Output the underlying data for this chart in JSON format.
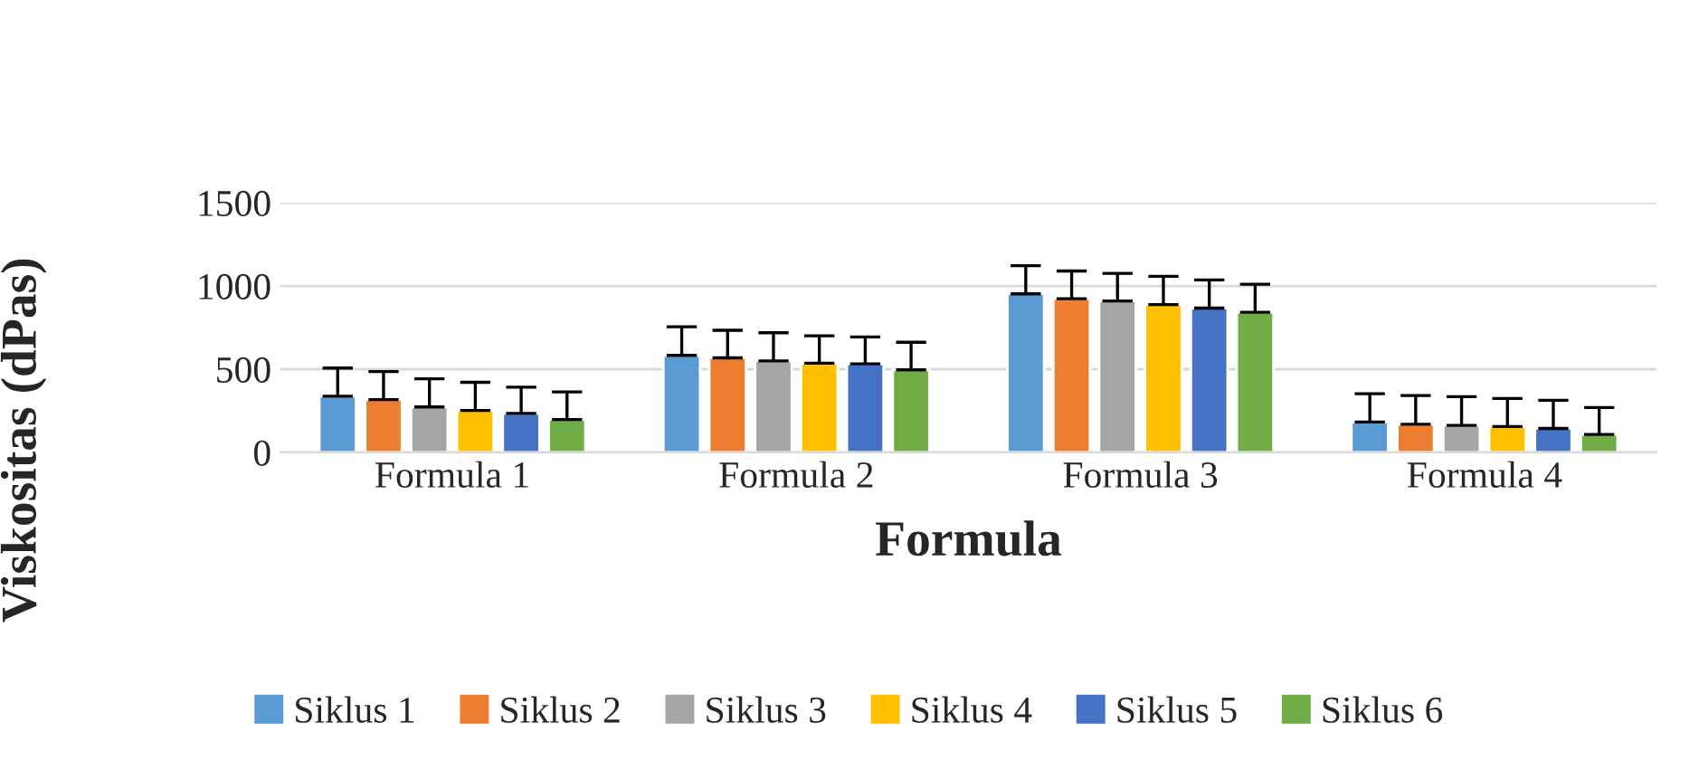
{
  "chart_data": {
    "type": "bar",
    "xlabel": "Formula",
    "ylabel": "Viskositas (dPas)",
    "categories": [
      "Formula 1",
      "Formula 2",
      "Formula 3",
      "Formula 4"
    ],
    "series": [
      {
        "name": "Siklus 1",
        "color": "#5b9bd5",
        "values": [
          338,
          583,
          953,
          183
        ],
        "errors": [
          [
            338,
            507
          ],
          [
            583,
            755
          ],
          [
            953,
            1122
          ],
          [
            183,
            353
          ]
        ]
      },
      {
        "name": "Siklus 2",
        "color": "#ed7d31",
        "values": [
          317,
          568,
          924,
          169
        ],
        "errors": [
          [
            317,
            486
          ],
          [
            568,
            734
          ],
          [
            924,
            1090
          ],
          [
            169,
            342
          ]
        ]
      },
      {
        "name": "Siklus 3",
        "color": "#a5a5a5",
        "values": [
          273,
          550,
          910,
          162
        ],
        "errors": [
          [
            273,
            442
          ],
          [
            550,
            719
          ],
          [
            910,
            1076
          ],
          [
            162,
            335
          ]
        ]
      },
      {
        "name": "Siklus 4",
        "color": "#ffc000",
        "values": [
          252,
          536,
          888,
          155
        ],
        "errors": [
          [
            252,
            421
          ],
          [
            536,
            701
          ],
          [
            888,
            1058
          ],
          [
            155,
            324
          ]
        ]
      },
      {
        "name": "Siklus 5",
        "color": "#4472c4",
        "values": [
          234,
          532,
          867,
          144
        ],
        "errors": [
          [
            234,
            392
          ],
          [
            532,
            694
          ],
          [
            867,
            1036
          ],
          [
            144,
            313
          ]
        ]
      },
      {
        "name": "Siklus 6",
        "color": "#70ad47",
        "values": [
          198,
          496,
          842,
          108
        ],
        "errors": [
          [
            198,
            363
          ],
          [
            496,
            662
          ],
          [
            842,
            1011
          ],
          [
            108,
            270
          ]
        ]
      }
    ],
    "ylim": [
      0,
      1500
    ],
    "yticks": [
      0,
      500,
      1000,
      1500
    ],
    "grid": "y",
    "legend": "bottom"
  }
}
